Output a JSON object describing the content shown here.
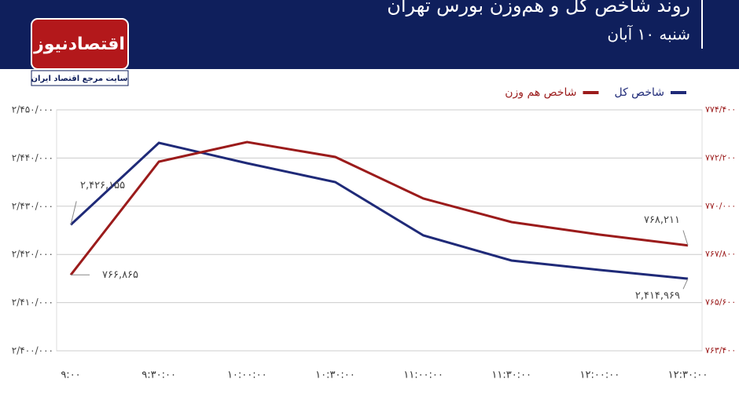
{
  "logo": {
    "name": "اقتصادنیوز",
    "tagline": "سایت مرجع اقتصاد ایران"
  },
  "chart_data": {
    "type": "line",
    "title": "روند شاخص کل و هم‌وزن بورس تهران",
    "subtitle": "شنبه ۱۰ آبان",
    "categories": [
      "۹:۰۰",
      "۹:۳۰:۰۰",
      "۱۰:۰۰:۰۰",
      "۱۰:۳۰:۰۰",
      "۱۱:۰۰:۰۰",
      "۱۱:۳۰:۰۰",
      "۱۲:۰۰:۰۰",
      "۱۲:۳۰:۰۰"
    ],
    "series": [
      {
        "name": "شاخص کل",
        "color": "#1f2a78",
        "values": [
          2426155,
          2443160,
          2438925,
          2435016,
          2423941,
          2418730,
          2416775,
          2414969
        ],
        "value_labels": [
          "۲,۴۲۶,۱۵۵",
          null,
          null,
          null,
          null,
          null,
          null,
          "۲,۴۱۴,۹۶۹"
        ]
      },
      {
        "name": "شاخص هم وزن",
        "color": "#9b1b1b",
        "axis": "y2",
        "values": [
          766865,
          772035,
          772931,
          772250,
          770351,
          769276,
          768703,
          768211
        ],
        "value_labels": [
          "۷۶۶,۸۶۵",
          null,
          null,
          null,
          null,
          null,
          null,
          "۷۶۸,۲۱۱"
        ]
      }
    ],
    "ylim": [
      2400000,
      2450000
    ],
    "yticks": [
      {
        "value": 2400000,
        "label": "۲/۴۰۰/۰۰۰"
      },
      {
        "value": 2410000,
        "label": "۲/۴۱۰/۰۰۰"
      },
      {
        "value": 2420000,
        "label": "۲/۴۲۰/۰۰۰"
      },
      {
        "value": 2430000,
        "label": "۲/۴۳۰/۰۰۰"
      },
      {
        "value": 2440000,
        "label": "۲/۴۴۰/۰۰۰"
      },
      {
        "value": 2450000,
        "label": "۲/۴۵۰/۰۰۰"
      }
    ],
    "y2lim": [
      763400,
      774400
    ],
    "y2ticks": [
      {
        "value": 763400,
        "label": "۷۶۳/۴۰۰"
      },
      {
        "value": 765600,
        "label": "۷۶۵/۶۰۰"
      },
      {
        "value": 767800,
        "label": "۷۶۷/۸۰۰"
      },
      {
        "value": 770000,
        "label": "۷۷۰/۰۰۰"
      },
      {
        "value": 772200,
        "label": "۷۷۲/۲۰۰"
      },
      {
        "value": 774400,
        "label": "۷۷۴/۴۰۰"
      }
    ],
    "grid": true,
    "legend": "top-right"
  }
}
